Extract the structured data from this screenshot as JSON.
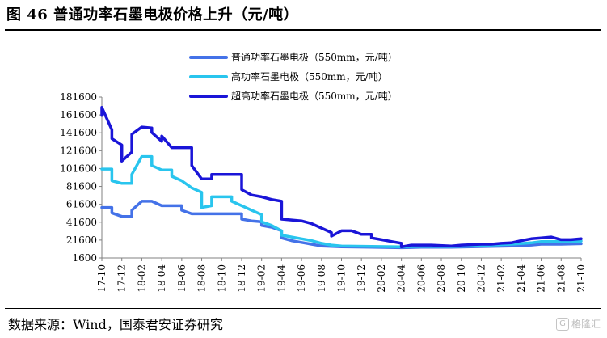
{
  "header": {
    "title": "图 46 普通功率石墨电极价格上升（元/吨）"
  },
  "footer": {
    "source": "数据来源：Wind，国泰君安证券研究",
    "watermark": "格隆汇"
  },
  "chart_data": {
    "type": "line",
    "title": "",
    "xlabel": "",
    "ylabel": "",
    "ylim": [
      1600,
      181600
    ],
    "yticks": [
      1600,
      21600,
      41600,
      61600,
      81600,
      101600,
      121600,
      141600,
      161600,
      181600
    ],
    "xlim": [
      "2017-10",
      "2021-10"
    ],
    "xticks": [
      "17-10",
      "17-12",
      "18-02",
      "18-04",
      "18-06",
      "18-08",
      "18-10",
      "18-12",
      "19-02",
      "19-04",
      "19-06",
      "19-08",
      "19-10",
      "19-12",
      "20-02",
      "20-04",
      "20-06",
      "20-08",
      "20-10",
      "20-12",
      "21-02",
      "21-04",
      "21-06",
      "21-08",
      "21-10"
    ],
    "legend_position": "top-center",
    "series": [
      {
        "name": "普通功率石墨电极（550mm，元/吨）",
        "color": "#4472e8",
        "points": [
          [
            "2017-10",
            58000
          ],
          [
            "2017-11",
            58000
          ],
          [
            "2017-11",
            52000
          ],
          [
            "2017-12",
            48000
          ],
          [
            "2018-01",
            48000
          ],
          [
            "2018-01",
            55000
          ],
          [
            "2018-02",
            65000
          ],
          [
            "2018-03",
            65000
          ],
          [
            "2018-04",
            60000
          ],
          [
            "2018-06",
            60000
          ],
          [
            "2018-06",
            55000
          ],
          [
            "2018-07",
            51000
          ],
          [
            "2018-12",
            51000
          ],
          [
            "2018-12",
            45000
          ],
          [
            "2019-01",
            43000
          ],
          [
            "2019-02",
            42000
          ],
          [
            "2019-02",
            38000
          ],
          [
            "2019-03",
            36000
          ],
          [
            "2019-04",
            32000
          ],
          [
            "2019-04",
            24000
          ],
          [
            "2019-05",
            21000
          ],
          [
            "2019-06",
            19000
          ],
          [
            "2019-07",
            17000
          ],
          [
            "2019-08",
            15000
          ],
          [
            "2019-10",
            14000
          ],
          [
            "2020-01",
            13500
          ],
          [
            "2020-04",
            13000
          ],
          [
            "2020-06",
            13500
          ],
          [
            "2020-09",
            13500
          ],
          [
            "2020-11",
            14000
          ],
          [
            "2021-01",
            14500
          ],
          [
            "2021-03",
            15000
          ],
          [
            "2021-05",
            16000
          ],
          [
            "2021-06",
            17000
          ],
          [
            "2021-08",
            17000
          ],
          [
            "2021-10",
            17500
          ]
        ]
      },
      {
        "name": "高功率石墨电极（550mm，元/吨）",
        "color": "#29c5ee",
        "points": [
          [
            "2017-10",
            101000
          ],
          [
            "2017-11",
            101000
          ],
          [
            "2017-11",
            88000
          ],
          [
            "2017-12",
            85000
          ],
          [
            "2018-01",
            85000
          ],
          [
            "2018-01",
            95000
          ],
          [
            "2018-02",
            115000
          ],
          [
            "2018-03",
            115000
          ],
          [
            "2018-03",
            105000
          ],
          [
            "2018-04",
            100000
          ],
          [
            "2018-05",
            100000
          ],
          [
            "2018-05",
            93000
          ],
          [
            "2018-06",
            88000
          ],
          [
            "2018-07",
            80000
          ],
          [
            "2018-08",
            75000
          ],
          [
            "2018-08",
            58000
          ],
          [
            "2018-09",
            60000
          ],
          [
            "2018-09",
            70000
          ],
          [
            "2018-11",
            70000
          ],
          [
            "2018-11",
            65000
          ],
          [
            "2018-12",
            60000
          ],
          [
            "2019-01",
            55000
          ],
          [
            "2019-02",
            50000
          ],
          [
            "2019-02",
            42000
          ],
          [
            "2019-03",
            38000
          ],
          [
            "2019-04",
            32000
          ],
          [
            "2019-04",
            27000
          ],
          [
            "2019-05",
            25000
          ],
          [
            "2019-06",
            23000
          ],
          [
            "2019-07",
            21000
          ],
          [
            "2019-08",
            18000
          ],
          [
            "2019-09",
            16000
          ],
          [
            "2019-10",
            15000
          ],
          [
            "2020-01",
            14500
          ],
          [
            "2020-04",
            14000
          ],
          [
            "2020-06",
            14500
          ],
          [
            "2020-09",
            14500
          ],
          [
            "2020-11",
            15000
          ],
          [
            "2021-01",
            16000
          ],
          [
            "2021-03",
            17000
          ],
          [
            "2021-05",
            18500
          ],
          [
            "2021-06",
            20000
          ],
          [
            "2021-08",
            20000
          ],
          [
            "2021-10",
            20500
          ]
        ]
      },
      {
        "name": "超高功率石墨电极（550mm，元/吨）",
        "color": "#1a15d8",
        "points": [
          [
            "2017-10",
            161000
          ],
          [
            "2017-10",
            170000
          ],
          [
            "2017-11",
            145000
          ],
          [
            "2017-11",
            135000
          ],
          [
            "2017-12",
            128000
          ],
          [
            "2017-12",
            110000
          ],
          [
            "2018-01",
            120000
          ],
          [
            "2018-01",
            140000
          ],
          [
            "2018-02",
            148000
          ],
          [
            "2018-03",
            147000
          ],
          [
            "2018-03",
            142000
          ],
          [
            "2018-04",
            132000
          ],
          [
            "2018-04",
            138000
          ],
          [
            "2018-05",
            125000
          ],
          [
            "2018-07",
            125000
          ],
          [
            "2018-07",
            105000
          ],
          [
            "2018-08",
            90000
          ],
          [
            "2018-09",
            90000
          ],
          [
            "2018-09",
            95000
          ],
          [
            "2018-12",
            95000
          ],
          [
            "2018-12",
            78000
          ],
          [
            "2019-01",
            72000
          ],
          [
            "2019-02",
            70000
          ],
          [
            "2019-03",
            67000
          ],
          [
            "2019-04",
            65000
          ],
          [
            "2019-04",
            45000
          ],
          [
            "2019-06",
            43000
          ],
          [
            "2019-07",
            40000
          ],
          [
            "2019-08",
            35000
          ],
          [
            "2019-09",
            30000
          ],
          [
            "2019-09",
            26000
          ],
          [
            "2019-10",
            32000
          ],
          [
            "2019-11",
            32000
          ],
          [
            "2019-12",
            28000
          ],
          [
            "2020-01",
            28000
          ],
          [
            "2020-01",
            24000
          ],
          [
            "2020-02",
            22000
          ],
          [
            "2020-03",
            20000
          ],
          [
            "2020-04",
            18000
          ],
          [
            "2020-04",
            14000
          ],
          [
            "2020-05",
            16000
          ],
          [
            "2020-07",
            16000
          ],
          [
            "2020-09",
            15000
          ],
          [
            "2020-10",
            16000
          ],
          [
            "2020-12",
            17000
          ],
          [
            "2021-01",
            17000
          ],
          [
            "2021-02",
            18000
          ],
          [
            "2021-03",
            18500
          ],
          [
            "2021-04",
            21000
          ],
          [
            "2021-05",
            23000
          ],
          [
            "2021-06",
            24000
          ],
          [
            "2021-07",
            25000
          ],
          [
            "2021-08",
            22000
          ],
          [
            "2021-09",
            22000
          ],
          [
            "2021-10",
            23000
          ]
        ]
      }
    ]
  }
}
